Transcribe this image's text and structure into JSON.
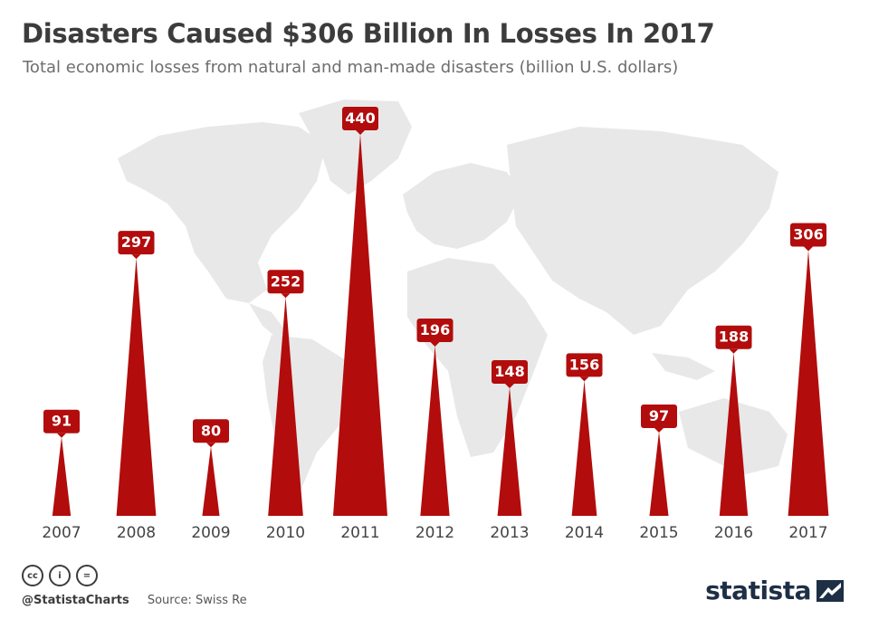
{
  "header": {
    "title": "Disasters Caused $306 Billion In Losses In 2017",
    "subtitle": "Total economic losses from natural and man-made disasters (billion U.S. dollars)"
  },
  "chart_data": {
    "type": "bar",
    "categories": [
      "2007",
      "2008",
      "2009",
      "2010",
      "2011",
      "2012",
      "2013",
      "2014",
      "2015",
      "2016",
      "2017"
    ],
    "values": [
      91,
      297,
      80,
      252,
      440,
      196,
      148,
      156,
      97,
      188,
      306
    ],
    "title": "Disasters Caused $306 Billion In Losses In 2017",
    "ylabel": "Total economic losses from natural and man-made disasters (billion U.S. dollars)",
    "ylim": [
      0,
      440
    ],
    "grid": false,
    "colors": {
      "bar": "#b20c0c",
      "label_bg": "#b20c0c",
      "label_text": "#ffffff",
      "background_map": "#e8e8e8"
    }
  },
  "footer": {
    "license_icons": [
      "cc-icon",
      "by-icon",
      "nd-icon"
    ],
    "license_glyphs": [
      "cc",
      "i",
      "="
    ],
    "handle": "@StatistaCharts",
    "source": "Source: Swiss Re",
    "brand": "statista"
  }
}
